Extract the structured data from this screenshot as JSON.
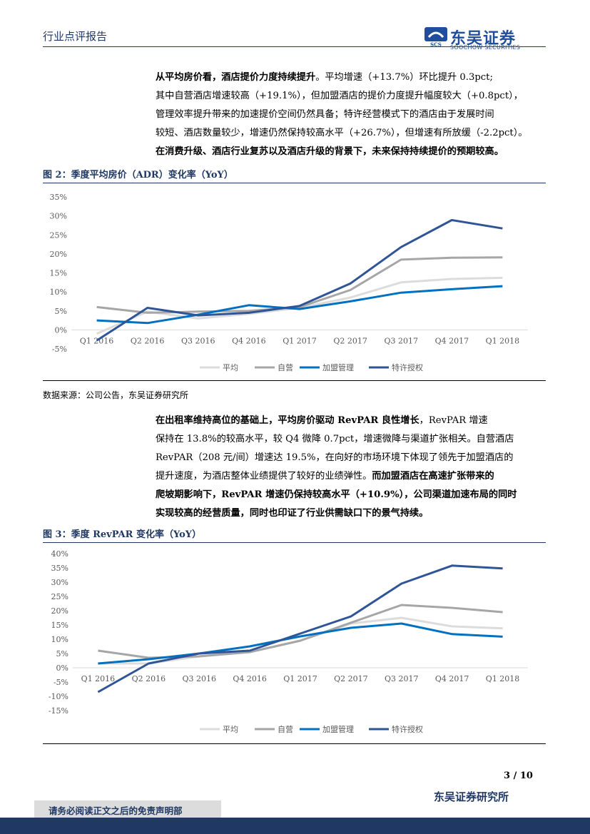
{
  "header": {
    "report_type": "行业点评报告",
    "logo_cn": "东吴证券",
    "logo_en": "SOOCHOW SECURITIES",
    "logo_mark_text": "SCS"
  },
  "para1": {
    "lines": [
      [
        {
          "t": "从平均房价看，酒店提价力度持续提升",
          "b": true
        },
        {
          "t": "。平均增速（+13.7%）环比提升 0.3pct;",
          "b": false
        }
      ],
      [
        {
          "t": "其中自营酒店增速较高（+19.1%），但加盟酒店的提价力度提升幅度较大（+0.8pct），",
          "b": false
        }
      ],
      [
        {
          "t": "管理效率提升带来的加速提价空间仍然具备；特许经营模式下的酒店由于发展时间",
          "b": false
        }
      ],
      [
        {
          "t": "较短、酒店数量较少，增速仍然保持较高水平（+26.7%），但增速有所放缓（-2.2pct）。",
          "b": false
        }
      ],
      [
        {
          "t": "在消费升级、酒店行业复苏以及酒店升级的背景下，未来保持持续提价的预期较高。",
          "b": true
        }
      ]
    ]
  },
  "figure2": {
    "title": "图 2：季度平均房价（ADR）变化率（YoY）"
  },
  "source": "数据来源：公司公告，东吴证券研究所",
  "para2": {
    "lines": [
      [
        {
          "t": "在出租率维持高位的基础上，平均房价驱动 RevPAR 良性增长",
          "b": true
        },
        {
          "t": "，RevPAR 增速",
          "b": false
        }
      ],
      [
        {
          "t": "保持在 13.8%的较高水平，较 Q4 微降 0.7pct，增速微降与渠道扩张相关。自营酒店",
          "b": false
        }
      ],
      [
        {
          "t": "RevPAR（208 元/间）增速达 19.5%，在向好的市场环境下体现了领先于加盟酒店的",
          "b": false
        }
      ],
      [
        {
          "t": "提升速度，为酒店整体业绩提供了较好的业绩弹性。",
          "b": false
        },
        {
          "t": "而加盟酒店在高速扩张带来的",
          "b": true
        }
      ],
      [
        {
          "t": "爬坡期影响下，RevPAR 增速仍保持较高水平（+10.9%），公司渠道加速布局的同时",
          "b": true
        }
      ],
      [
        {
          "t": "实现较高的经营质量，同时也印证了行业供需缺口下的景气持续。",
          "b": true
        }
      ]
    ]
  },
  "figure3": {
    "title": "图 3：季度 RevPAR 变化率（YoY）"
  },
  "chart_data": [
    {
      "type": "line",
      "x": [
        "Q1 2016",
        "Q2 2016",
        "Q3 2016",
        "Q4 2016",
        "Q1 2017",
        "Q2 2017",
        "Q3 2017",
        "Q4 2017",
        "Q1 2018"
      ],
      "yticks": [
        "-5%",
        "0%",
        "5%",
        "10%",
        "15%",
        "20%",
        "25%",
        "30%",
        "35%"
      ],
      "ylim": [
        -5,
        35
      ],
      "grid": false,
      "legend_position": "bottom",
      "series": [
        {
          "name": "平均",
          "color": "#dcdcdc",
          "values": [
            -1.0,
            4.8,
            3.0,
            4.2,
            5.8,
            8.5,
            12.5,
            13.4,
            13.7
          ]
        },
        {
          "name": "自营",
          "color": "#a6a6a6",
          "values": [
            6.0,
            4.5,
            4.8,
            5.0,
            6.0,
            10.5,
            18.5,
            19.0,
            19.1
          ]
        },
        {
          "name": "加盟管理",
          "color": "#0070c0",
          "values": [
            2.5,
            1.8,
            4.0,
            6.5,
            5.5,
            7.5,
            9.8,
            10.7,
            11.5
          ]
        },
        {
          "name": "特许授权",
          "color": "#2f5597",
          "values": [
            -2.8,
            5.8,
            3.8,
            4.5,
            6.3,
            12.2,
            21.8,
            28.9,
            26.7
          ]
        }
      ]
    },
    {
      "type": "line",
      "x": [
        "Q1 2016",
        "Q2 2016",
        "Q3 2016",
        "Q4 2016",
        "Q1 2017",
        "Q2 2017",
        "Q3 2017",
        "Q4 2017",
        "Q1 2018"
      ],
      "yticks": [
        "-15%",
        "-10%",
        "-5%",
        "0%",
        "5%",
        "10%",
        "15%",
        "20%",
        "25%",
        "30%",
        "35%",
        "40%"
      ],
      "ylim": [
        -15,
        40
      ],
      "grid": false,
      "legend_position": "bottom",
      "series": [
        {
          "name": "平均",
          "color": "#dcdcdc",
          "values": [
            1.5,
            1.5,
            4.0,
            5.5,
            9.5,
            15.5,
            17.5,
            14.5,
            13.8
          ]
        },
        {
          "name": "自营",
          "color": "#a6a6a6",
          "values": [
            6.0,
            3.5,
            4.0,
            5.5,
            9.5,
            15.8,
            22.0,
            21.0,
            19.5
          ]
        },
        {
          "name": "加盟管理",
          "color": "#0070c0",
          "values": [
            1.5,
            3.0,
            5.0,
            7.5,
            11.0,
            14.0,
            15.5,
            11.8,
            10.9
          ]
        },
        {
          "name": "特许授权",
          "color": "#2f5597",
          "values": [
            -8.5,
            1.5,
            5.0,
            6.0,
            12.0,
            18.0,
            29.5,
            35.8,
            34.8
          ]
        }
      ]
    }
  ],
  "footer": {
    "page": "3 / 10",
    "org": "东吴证券研究所",
    "disclaimer": "请务必阅读正文之后的免责声明部"
  }
}
